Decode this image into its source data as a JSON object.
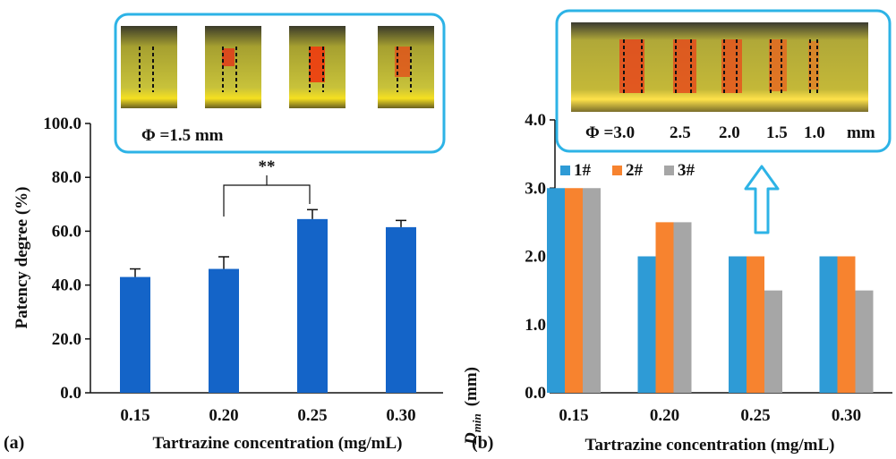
{
  "colors": {
    "bar_a": "#1464c8",
    "series_1": "#2e9bd6",
    "series_2": "#f7832f",
    "series_3": "#a6a6a6",
    "inset_border": "#2db3e6",
    "arrow": "#2db3e6"
  },
  "chart_data": [
    {
      "type": "bar",
      "panel_label": "(a)",
      "xlabel": "Tartrazine concentration (mg/mL)",
      "ylabel": "Patency degree (%)",
      "categories": [
        "0.15",
        "0.20",
        "0.25",
        "0.30"
      ],
      "values": [
        43.0,
        46.0,
        64.5,
        61.5
      ],
      "errors": [
        3.0,
        4.5,
        3.5,
        2.5
      ],
      "ylim": [
        0,
        100
      ],
      "yticks": [
        "0.0",
        "20.0",
        "40.0",
        "60.0",
        "80.0",
        "100.0"
      ],
      "significance": {
        "from": "0.20",
        "to": "0.25",
        "label": "**"
      },
      "inset": {
        "label": "Φ =1.5 mm"
      },
      "grid": false
    },
    {
      "type": "bar",
      "panel_label": "(b)",
      "xlabel": "Tartrazine concentration (mg/mL)",
      "ylabel_main": "D",
      "ylabel_sub": "min",
      "ylabel_unit": "(mm)",
      "categories": [
        "0.15",
        "0.20",
        "0.25",
        "0.30"
      ],
      "series": [
        {
          "name": "1#",
          "values": [
            3.0,
            2.0,
            2.0,
            2.0
          ]
        },
        {
          "name": "2#",
          "values": [
            3.0,
            2.5,
            2.0,
            2.0
          ]
        },
        {
          "name": "3#",
          "values": [
            3.0,
            2.5,
            1.5,
            1.5
          ]
        }
      ],
      "ylim": [
        0,
        4
      ],
      "yticks": [
        "0.0",
        "1.0",
        "2.0",
        "3.0",
        "4.0"
      ],
      "legend": "top-left",
      "inset": {
        "labels": [
          "Φ =3.0",
          "2.5",
          "2.0",
          "1.5",
          "1.0",
          "mm"
        ]
      },
      "grid": false
    }
  ]
}
